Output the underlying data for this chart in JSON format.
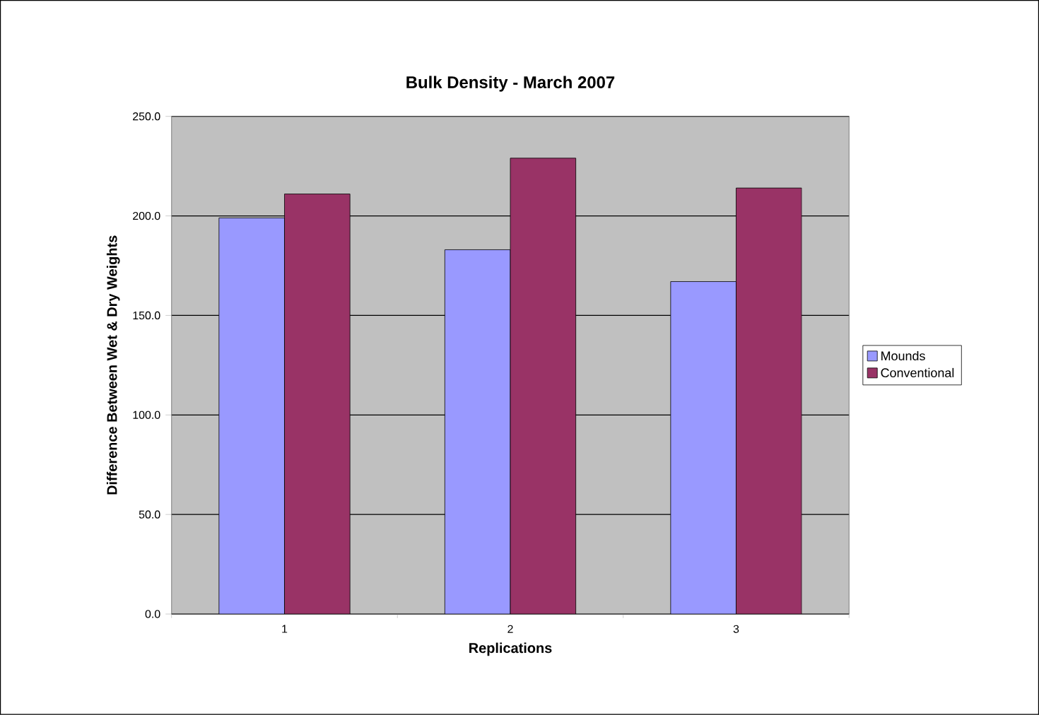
{
  "chart_data": {
    "type": "bar",
    "title": "Bulk Density - March 2007",
    "xlabel": "Replications",
    "ylabel": "Difference Between Wet & Dry Weights",
    "categories": [
      "1",
      "2",
      "3"
    ],
    "series": [
      {
        "name": "Mounds",
        "color": "#9999ff",
        "values": [
          199,
          183,
          167
        ]
      },
      {
        "name": "Conventional",
        "color": "#993366",
        "values": [
          211,
          229,
          214
        ]
      }
    ],
    "ylim": [
      0,
      250
    ],
    "yticks": [
      {
        "value": 0,
        "label": "0.0"
      },
      {
        "value": 50,
        "label": "50.0"
      },
      {
        "value": 100,
        "label": "100.0"
      },
      {
        "value": 150,
        "label": "150.0"
      },
      {
        "value": 200,
        "label": "200.0"
      },
      {
        "value": 250,
        "label": "250.0"
      }
    ],
    "grid": "y",
    "legend": "right"
  }
}
